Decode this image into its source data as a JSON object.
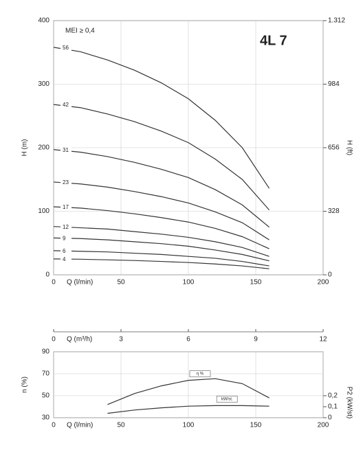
{
  "chart_data": [
    {
      "type": "line",
      "title": "4L 7",
      "subtitle": "MEI ≥ 0,4",
      "xlabel": "Q (l/min)",
      "ylabel": "H (m)",
      "y2label": "H (ft)",
      "xlim": [
        0,
        200
      ],
      "xticks": [
        0,
        50,
        100,
        150,
        200
      ],
      "ylim": [
        0,
        400
      ],
      "yticks": [
        0,
        100,
        200,
        300,
        400
      ],
      "y2lim": [
        0,
        1312
      ],
      "y2ticks": [
        0,
        328,
        656,
        984,
        {
          "value": 1312,
          "label": "1.312"
        }
      ],
      "x2label": "Q (m³/h)",
      "x2lim": [
        0,
        12
      ],
      "x2ticks": [
        0,
        3,
        6,
        9,
        12
      ],
      "grid": true,
      "x": [
        0,
        20,
        40,
        60,
        80,
        100,
        120,
        140,
        160
      ],
      "series": [
        {
          "name": "56",
          "color": "#333333",
          "values": [
            358,
            351,
            338,
            322,
            302,
            277,
            243,
            200,
            136
          ]
        },
        {
          "name": "42",
          "color": "#333333",
          "values": [
            268,
            263,
            253,
            241,
            226,
            208,
            182,
            150,
            102
          ]
        },
        {
          "name": "31",
          "color": "#333333",
          "values": [
            197,
            193,
            186,
            177,
            166,
            153,
            134,
            110,
            75
          ]
        },
        {
          "name": "23",
          "color": "#333333",
          "values": [
            146,
            143,
            138,
            131,
            123,
            113,
            99,
            82,
            55
          ]
        },
        {
          "name": "17",
          "color": "#333333",
          "values": [
            107,
            105,
            101,
            96,
            90,
            83,
            73,
            60,
            41
          ]
        },
        {
          "name": "12",
          "color": "#333333",
          "values": [
            76,
            74,
            72,
            68,
            64,
            59,
            52,
            43,
            29
          ]
        },
        {
          "name": "9",
          "color": "#333333",
          "values": [
            58,
            57,
            55,
            52,
            49,
            45,
            39,
            32,
            22
          ]
        },
        {
          "name": "6",
          "color": "#333333",
          "values": [
            38,
            37,
            36,
            34,
            32,
            29,
            26,
            21,
            14
          ]
        },
        {
          "name": "4",
          "color": "#333333",
          "values": [
            25,
            24.5,
            23.6,
            22.5,
            21,
            19.4,
            17,
            14,
            9.5
          ]
        }
      ]
    },
    {
      "type": "line",
      "xlabel": "Q (l/min)",
      "ylabel": "n (%)",
      "y2label": "P2 (kW/st)",
      "xlim": [
        0,
        200
      ],
      "xticks": [
        0,
        50,
        100,
        150,
        200
      ],
      "ylim": [
        30,
        90
      ],
      "yticks": [
        30,
        50,
        70,
        90
      ],
      "y2lim": [
        0,
        0.6
      ],
      "y2ticks": [
        0,
        {
          "value": 0.1,
          "label": "0,1"
        },
        {
          "value": 0.2,
          "label": "0,2"
        }
      ],
      "grid": true,
      "x": [
        40,
        60,
        80,
        100,
        120,
        140,
        160
      ],
      "series": [
        {
          "name": "η %",
          "color": "#333333",
          "values": [
            42,
            52,
            59,
            64,
            65.5,
            61,
            48
          ]
        },
        {
          "name": "kW/st.",
          "color": "#333333",
          "axis": "y2",
          "values": [
            0.04,
            0.07,
            0.09,
            0.105,
            0.11,
            0.11,
            0.105
          ]
        }
      ]
    }
  ]
}
